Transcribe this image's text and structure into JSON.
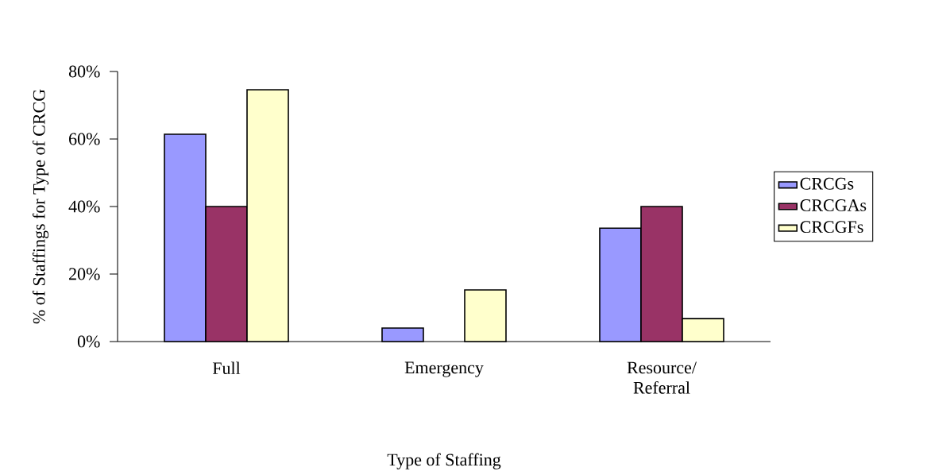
{
  "chart_data": {
    "type": "bar",
    "xlabel": "Type of Staffing",
    "ylabel": "% of Staffings for Type of CRCG",
    "categories": [
      "Full",
      "Emergency",
      "Resource/ Referral"
    ],
    "series": [
      {
        "name": "CRCGs",
        "color": "#9999ff",
        "values": [
          61.4,
          4,
          33.6
        ]
      },
      {
        "name": "CRCGAs",
        "color": "#993366",
        "values": [
          40,
          null,
          40
        ]
      },
      {
        "name": "CRCGFs",
        "color": "#ffffcc",
        "values": [
          74.6,
          15.3,
          6.8
        ]
      }
    ],
    "ylim": [
      0,
      80
    ],
    "yticks": [
      {
        "value": 0,
        "label": "0%"
      },
      {
        "value": 20,
        "label": "20%"
      },
      {
        "value": 40,
        "label": "40%"
      },
      {
        "value": 60,
        "label": "60%"
      },
      {
        "value": 80,
        "label": "80%"
      }
    ],
    "grid": false,
    "legend": "right"
  }
}
